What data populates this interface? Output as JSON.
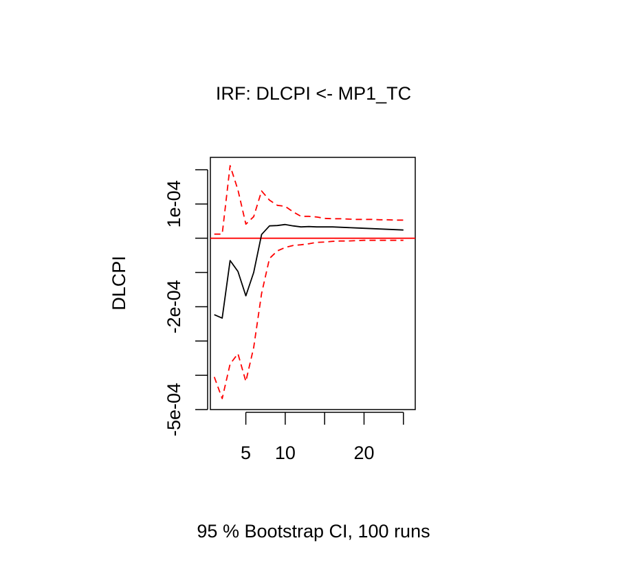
{
  "chart_data": {
    "type": "line",
    "title": "IRF: DLCPI <- MP1_TC",
    "ylabel": "DLCPI",
    "xlabel": "95 % Bootstrap CI,  100 runs",
    "x_ticks": [
      5,
      10,
      15,
      20,
      25
    ],
    "x_tick_labels": [
      "5",
      "10",
      "",
      "20",
      ""
    ],
    "y_ticks": [
      -0.0005,
      -0.0004,
      -0.0003,
      -0.0002,
      -0.0001,
      0,
      0.0001,
      0.0002
    ],
    "y_tick_labels": [
      "-5e-04",
      "",
      "",
      "-2e-04",
      "",
      "",
      "1e-04",
      ""
    ],
    "xlim": [
      0.5,
      26.5
    ],
    "ylim": [
      -0.0005,
      0.000236
    ],
    "zero_line": 0,
    "x": [
      1,
      2,
      3,
      4,
      5,
      6,
      7,
      8,
      9,
      10,
      11,
      12,
      13,
      14,
      15,
      16,
      17,
      18,
      19,
      20,
      21,
      22,
      23,
      24,
      25
    ],
    "series": [
      {
        "role": "irf",
        "color": "#000000",
        "dash": "solid",
        "values": [
          -0.000223,
          -0.000233,
          -6.5e-05,
          -9.7e-05,
          -0.000168,
          -0.0001,
          1.1e-05,
          3.6e-05,
          3.7e-05,
          4e-05,
          3.6e-05,
          3.3e-05,
          3.4e-05,
          3.3e-05,
          3.3e-05,
          3.3e-05,
          3.2e-05,
          3.1e-05,
          3e-05,
          2.9e-05,
          2.8e-05,
          2.7e-05,
          2.6e-05,
          2.5e-05,
          2.4e-05
        ]
      },
      {
        "role": "upper",
        "color": "#ff0000",
        "dash": "dashed",
        "values": [
          1.2e-05,
          1.2e-05,
          0.000212,
          0.000141,
          4.1e-05,
          6.3e-05,
          0.000138,
          0.000111,
          9.6e-05,
          9.3e-05,
          7.7e-05,
          6.4e-05,
          6.4e-05,
          6.2e-05,
          5.8e-05,
          5.7e-05,
          5.7e-05,
          5.6e-05,
          5.5e-05,
          5.5e-05,
          5.5e-05,
          5.4e-05,
          5.4e-05,
          5.3e-05,
          5.3e-05
        ]
      },
      {
        "role": "lower",
        "color": "#ff0000",
        "dash": "dashed",
        "values": [
          -0.000405,
          -0.000468,
          -0.000367,
          -0.000337,
          -0.000418,
          -0.000319,
          -0.000161,
          -5.9e-05,
          -3.7e-05,
          -2.7e-05,
          -2.1e-05,
          -1.9e-05,
          -1.6e-05,
          -1.2e-05,
          -1.1e-05,
          -9e-06,
          -8e-06,
          -8e-06,
          -7e-06,
          -6e-06,
          -6e-06,
          -6e-06,
          -6e-06,
          -6e-06,
          -6e-06
        ]
      }
    ]
  }
}
